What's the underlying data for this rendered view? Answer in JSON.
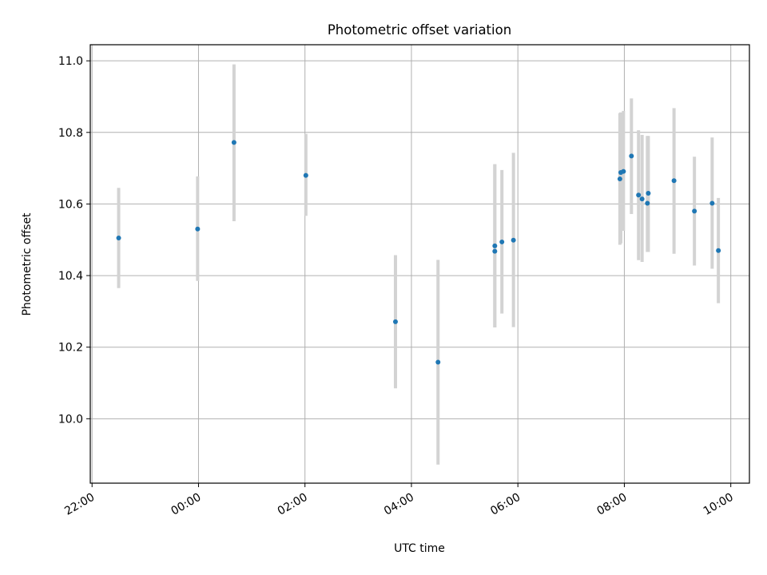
{
  "chart_data": {
    "type": "scatter",
    "title": "Photometric offset variation",
    "xlabel": "UTC time",
    "ylabel": "Photometric offset",
    "grid": true,
    "x_axis": {
      "min": "21:58",
      "max": "10:21",
      "ticks": [
        "22:00",
        "00:00",
        "02:00",
        "04:00",
        "06:00",
        "08:00",
        "10:00"
      ],
      "tick_rotation": 30
    },
    "y_axis": {
      "min": 9.82,
      "max": 11.045,
      "ticks": [
        "10.0",
        "10.2",
        "10.4",
        "10.6",
        "10.8",
        "11.0"
      ]
    },
    "colors": {
      "points": "#1f77b4",
      "error_bars": "#d3d3d3",
      "grid": "#b0b0b0"
    },
    "points": [
      {
        "time": "22:30",
        "y": 10.505,
        "low": 10.365,
        "high": 10.645
      },
      {
        "time": "23:59",
        "y": 10.53,
        "low": 10.385,
        "high": 10.677
      },
      {
        "time": "00:40",
        "y": 10.772,
        "low": 10.552,
        "high": 10.99
      },
      {
        "time": "02:01",
        "y": 10.68,
        "low": 10.567,
        "high": 10.796
      },
      {
        "time": "03:42",
        "y": 10.271,
        "low": 10.085,
        "high": 10.457
      },
      {
        "time": "04:30",
        "y": 10.158,
        "low": 9.872,
        "high": 10.444
      },
      {
        "time": "05:34",
        "y": 10.483,
        "low": 10.255,
        "high": 10.711
      },
      {
        "time": "05:34",
        "y": 10.468,
        "low": 10.255,
        "high": 10.711
      },
      {
        "time": "05:42",
        "y": 10.494,
        "low": 10.294,
        "high": 10.695
      },
      {
        "time": "05:55",
        "y": 10.499,
        "low": 10.256,
        "high": 10.743
      },
      {
        "time": "07:55",
        "y": 10.67,
        "low": 10.486,
        "high": 10.854
      },
      {
        "time": "07:56",
        "y": 10.688,
        "low": 10.49,
        "high": 10.856
      },
      {
        "time": "07:59",
        "y": 10.691,
        "low": 10.525,
        "high": 10.86
      },
      {
        "time": "08:08",
        "y": 10.734,
        "low": 10.572,
        "high": 10.895
      },
      {
        "time": "08:16",
        "y": 10.625,
        "low": 10.443,
        "high": 10.806
      },
      {
        "time": "08:20",
        "y": 10.614,
        "low": 10.438,
        "high": 10.793
      },
      {
        "time": "08:26",
        "y": 10.602,
        "low": 10.466,
        "high": 10.79
      },
      {
        "time": "08:27",
        "y": 10.63,
        "low": 10.466,
        "high": 10.79
      },
      {
        "time": "08:56",
        "y": 10.665,
        "low": 10.461,
        "high": 10.868
      },
      {
        "time": "09:19",
        "y": 10.58,
        "low": 10.428,
        "high": 10.732
      },
      {
        "time": "09:39",
        "y": 10.602,
        "low": 10.419,
        "high": 10.786
      },
      {
        "time": "09:46",
        "y": 10.47,
        "low": 10.323,
        "high": 10.617
      }
    ]
  }
}
